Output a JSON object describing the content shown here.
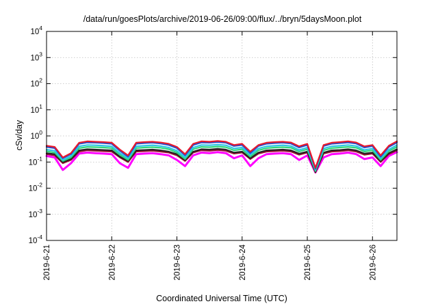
{
  "chart_data": {
    "type": "line",
    "title": "/data/run/goesPlots/archive/2019-06-26/09:00/flux/../bryn/5daysMoon.plot",
    "xlabel": "Coordinated Universal Time (UTC)",
    "ylabel": "cSv/day",
    "yscale": "log",
    "ylim": [
      0.0001,
      10000
    ],
    "xlim": [
      "2019-06-21",
      "2019-06-26 09:00"
    ],
    "grid": true,
    "legend": "none",
    "y_ticks": [
      {
        "base": "10",
        "exp": "-4",
        "value": 0.0001
      },
      {
        "base": "10",
        "exp": "-3",
        "value": 0.001
      },
      {
        "base": "10",
        "exp": "-2",
        "value": 0.01
      },
      {
        "base": "10",
        "exp": "-1",
        "value": 0.1
      },
      {
        "base": "10",
        "exp": "0",
        "value": 1
      },
      {
        "base": "10",
        "exp": "1",
        "value": 10
      },
      {
        "base": "10",
        "exp": "2",
        "value": 100
      },
      {
        "base": "10",
        "exp": "3",
        "value": 1000
      },
      {
        "base": "10",
        "exp": "4",
        "value": 10000
      }
    ],
    "x_ticks": [
      "2019-6-21",
      "2019-6-22",
      "2019-6-23",
      "2019-6-24",
      "2019-6-25",
      "2019-6-26"
    ],
    "x_days": [
      "2019-06-21 00:00",
      "2019-06-21 03:00",
      "2019-06-21 06:00",
      "2019-06-21 09:00",
      "2019-06-21 12:00",
      "2019-06-21 15:00",
      "2019-06-21 18:00",
      "2019-06-21 21:00",
      "2019-06-22 00:00",
      "2019-06-22 03:00",
      "2019-06-22 06:00",
      "2019-06-22 09:00",
      "2019-06-22 12:00",
      "2019-06-22 15:00",
      "2019-06-22 18:00",
      "2019-06-22 21:00",
      "2019-06-23 00:00",
      "2019-06-23 03:00",
      "2019-06-23 06:00",
      "2019-06-23 09:00",
      "2019-06-23 12:00",
      "2019-06-23 15:00",
      "2019-06-23 18:00",
      "2019-06-23 21:00",
      "2019-06-24 00:00",
      "2019-06-24 03:00",
      "2019-06-24 06:00",
      "2019-06-24 09:00",
      "2019-06-24 12:00",
      "2019-06-24 15:00",
      "2019-06-24 18:00",
      "2019-06-24 21:00",
      "2019-06-25 00:00",
      "2019-06-25 03:00",
      "2019-06-25 06:00",
      "2019-06-25 09:00",
      "2019-06-25 12:00",
      "2019-06-25 15:00",
      "2019-06-25 18:00",
      "2019-06-25 21:00",
      "2019-06-26 00:00",
      "2019-06-26 03:00",
      "2019-06-26 06:00",
      "2019-06-26 09:00"
    ],
    "series": [
      {
        "color": "#e8192c",
        "values": [
          0.42,
          0.38,
          0.15,
          0.22,
          0.55,
          0.62,
          0.6,
          0.58,
          0.55,
          0.3,
          0.18,
          0.55,
          0.58,
          0.6,
          0.56,
          0.5,
          0.38,
          0.2,
          0.5,
          0.62,
          0.6,
          0.64,
          0.6,
          0.45,
          0.5,
          0.25,
          0.45,
          0.55,
          0.58,
          0.6,
          0.56,
          0.4,
          0.5,
          0.06,
          0.45,
          0.55,
          0.58,
          0.62,
          0.56,
          0.4,
          0.45,
          0.18,
          0.42,
          0.62
        ]
      },
      {
        "color": "#1f4fd1",
        "values": [
          0.38,
          0.34,
          0.14,
          0.2,
          0.5,
          0.56,
          0.55,
          0.53,
          0.5,
          0.27,
          0.16,
          0.5,
          0.53,
          0.55,
          0.51,
          0.45,
          0.34,
          0.18,
          0.45,
          0.56,
          0.55,
          0.58,
          0.55,
          0.41,
          0.45,
          0.22,
          0.41,
          0.5,
          0.53,
          0.55,
          0.51,
          0.36,
          0.45,
          0.055,
          0.41,
          0.5,
          0.53,
          0.56,
          0.51,
          0.36,
          0.41,
          0.16,
          0.38,
          0.56
        ]
      },
      {
        "color": "#2ec4e6",
        "values": [
          0.3,
          0.27,
          0.12,
          0.17,
          0.4,
          0.45,
          0.44,
          0.42,
          0.4,
          0.22,
          0.14,
          0.4,
          0.42,
          0.44,
          0.41,
          0.36,
          0.27,
          0.15,
          0.36,
          0.45,
          0.44,
          0.46,
          0.44,
          0.33,
          0.36,
          0.19,
          0.33,
          0.4,
          0.42,
          0.44,
          0.41,
          0.29,
          0.36,
          0.05,
          0.33,
          0.4,
          0.42,
          0.45,
          0.41,
          0.29,
          0.33,
          0.14,
          0.3,
          0.45
        ]
      },
      {
        "color": "#2fd67a",
        "values": [
          0.26,
          0.23,
          0.11,
          0.15,
          0.34,
          0.38,
          0.37,
          0.36,
          0.34,
          0.19,
          0.12,
          0.34,
          0.36,
          0.37,
          0.35,
          0.31,
          0.23,
          0.13,
          0.31,
          0.38,
          0.37,
          0.39,
          0.37,
          0.28,
          0.31,
          0.16,
          0.28,
          0.34,
          0.36,
          0.37,
          0.35,
          0.25,
          0.31,
          0.045,
          0.28,
          0.34,
          0.36,
          0.38,
          0.35,
          0.25,
          0.28,
          0.12,
          0.26,
          0.38
        ]
      },
      {
        "color": "#222222",
        "values": [
          0.22,
          0.2,
          0.1,
          0.13,
          0.28,
          0.31,
          0.3,
          0.29,
          0.28,
          0.16,
          0.11,
          0.28,
          0.29,
          0.3,
          0.28,
          0.25,
          0.2,
          0.12,
          0.25,
          0.31,
          0.3,
          0.32,
          0.3,
          0.23,
          0.25,
          0.14,
          0.23,
          0.28,
          0.29,
          0.3,
          0.28,
          0.21,
          0.25,
          0.042,
          0.23,
          0.28,
          0.29,
          0.31,
          0.28,
          0.21,
          0.23,
          0.11,
          0.22,
          0.31
        ]
      },
      {
        "color": "#9b1030",
        "values": [
          0.2,
          0.18,
          0.09,
          0.12,
          0.25,
          0.28,
          0.27,
          0.26,
          0.25,
          0.15,
          0.1,
          0.25,
          0.26,
          0.27,
          0.25,
          0.23,
          0.18,
          0.11,
          0.23,
          0.28,
          0.27,
          0.29,
          0.27,
          0.21,
          0.23,
          0.13,
          0.21,
          0.25,
          0.26,
          0.27,
          0.25,
          0.19,
          0.23,
          0.04,
          0.21,
          0.25,
          0.26,
          0.28,
          0.25,
          0.19,
          0.21,
          0.1,
          0.2,
          0.28
        ]
      },
      {
        "color": "#ff00ff",
        "values": [
          0.17,
          0.15,
          0.05,
          0.09,
          0.21,
          0.23,
          0.22,
          0.21,
          0.2,
          0.09,
          0.06,
          0.2,
          0.21,
          0.22,
          0.2,
          0.18,
          0.12,
          0.07,
          0.18,
          0.23,
          0.22,
          0.24,
          0.22,
          0.14,
          0.18,
          0.07,
          0.14,
          0.2,
          0.21,
          0.22,
          0.2,
          0.12,
          0.18,
          0.04,
          0.15,
          0.2,
          0.21,
          0.23,
          0.2,
          0.13,
          0.15,
          0.07,
          0.17,
          0.24
        ]
      }
    ]
  }
}
